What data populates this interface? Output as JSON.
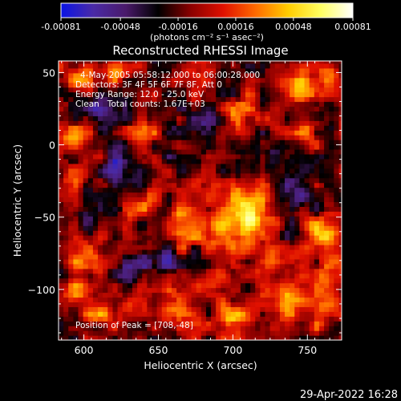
{
  "chart_data": {
    "type": "heatmap",
    "title": "Reconstructed RHESSI Image",
    "xlabel": "Heliocentric X (arcsec)",
    "ylabel": "Heliocentric Y (arcsec)",
    "xlim": [
      583,
      773
    ],
    "ylim": [
      -135,
      58
    ],
    "x_ticks": [
      600,
      650,
      700,
      750
    ],
    "y_ticks": [
      50,
      0,
      -50,
      -100
    ],
    "x_tick_labels": [
      "600",
      "650",
      "700",
      "750"
    ],
    "y_tick_labels": [
      "50",
      "0",
      "−50",
      "−100"
    ],
    "annotations": [
      "4-May-2005 05:58:12.000 to 06:00:28.000",
      "Detectors: 3F 4F 5F 6F 7F 8F, Att 0",
      "Energy Range: 12.0 - 25.0 keV",
      "Clean   Total counts: 1.67E+03",
      "Position of Peak = [708,-48]"
    ],
    "colorbar": {
      "range": [
        -0.00081,
        0.00081
      ],
      "ticks": [
        -0.00081,
        -0.00048,
        -0.00016,
        0.00016,
        0.00048,
        0.00081
      ],
      "tick_labels": [
        "-0.00081",
        "-0.00048",
        "-0.00016",
        "0.00016",
        "0.00048",
        "0.00081"
      ],
      "unit_label": "(photons cm⁻² s⁻¹ asec⁻²)",
      "colors": [
        "#0a14e6",
        "#4a2aa6",
        "#4a1a6a",
        "#000000",
        "#8a0000",
        "#e01000",
        "#ff6a00",
        "#ffcc00",
        "#ffff60",
        "#ffffff"
      ]
    },
    "peak": [
      708,
      -48
    ],
    "hotspots": [
      {
        "x": 710,
        "y": -45,
        "amp": 0.0008,
        "sx": 10,
        "sy": 11
      },
      {
        "x": 690,
        "y": -62,
        "amp": 0.0005,
        "sx": 9,
        "sy": 9
      },
      {
        "x": 758,
        "y": -62,
        "amp": 0.00045,
        "sx": 8,
        "sy": 10
      },
      {
        "x": 665,
        "y": -55,
        "amp": 0.00042,
        "sx": 7,
        "sy": 10
      },
      {
        "x": 640,
        "y": -38,
        "amp": 0.00035,
        "sx": 6,
        "sy": 7
      },
      {
        "x": 600,
        "y": -75,
        "amp": 0.00035,
        "sx": 8,
        "sy": 8
      },
      {
        "x": 595,
        "y": -100,
        "amp": 0.0004,
        "sx": 7,
        "sy": 7
      },
      {
        "x": 615,
        "y": -118,
        "amp": 0.0004,
        "sx": 8,
        "sy": 6
      },
      {
        "x": 660,
        "y": -110,
        "amp": 0.00045,
        "sx": 9,
        "sy": 7
      },
      {
        "x": 683,
        "y": -95,
        "amp": 0.0004,
        "sx": 8,
        "sy": 8
      },
      {
        "x": 700,
        "y": -120,
        "amp": 0.00045,
        "sx": 9,
        "sy": 8
      },
      {
        "x": 735,
        "y": -108,
        "amp": 0.0004,
        "sx": 8,
        "sy": 9
      },
      {
        "x": 763,
        "y": -115,
        "amp": 0.00038,
        "sx": 6,
        "sy": 8
      },
      {
        "x": 760,
        "y": -90,
        "amp": 0.00035,
        "sx": 6,
        "sy": 6
      },
      {
        "x": 600,
        "y": 45,
        "amp": 0.0004,
        "sx": 8,
        "sy": 8
      },
      {
        "x": 595,
        "y": 8,
        "amp": 0.00035,
        "sx": 7,
        "sy": 7
      },
      {
        "x": 620,
        "y": 50,
        "amp": 0.00035,
        "sx": 6,
        "sy": 5
      },
      {
        "x": 745,
        "y": 40,
        "amp": 0.00042,
        "sx": 8,
        "sy": 8
      },
      {
        "x": 765,
        "y": 48,
        "amp": 0.00035,
        "sx": 6,
        "sy": 6
      },
      {
        "x": 752,
        "y": 10,
        "amp": 0.0003,
        "sx": 7,
        "sy": 7
      },
      {
        "x": 705,
        "y": 22,
        "amp": 0.0003,
        "sx": 9,
        "sy": 6
      },
      {
        "x": 640,
        "y": 8,
        "amp": 0.00028,
        "sx": 7,
        "sy": 7
      },
      {
        "x": 595,
        "y": -18,
        "amp": 0.00025,
        "sx": 5,
        "sy": 6
      },
      {
        "x": 722,
        "y": -80,
        "amp": 0.0003,
        "sx": 5,
        "sy": 6
      },
      {
        "x": 690,
        "y": -28,
        "amp": 0.00025,
        "sx": 5,
        "sy": 5
      },
      {
        "x": 678,
        "y": 12,
        "amp": -0.0002,
        "sx": 10,
        "sy": 12
      },
      {
        "x": 625,
        "y": -15,
        "amp": -0.0004,
        "sx": 9,
        "sy": 9
      },
      {
        "x": 650,
        "y": -80,
        "amp": -0.0004,
        "sx": 10,
        "sy": 8
      },
      {
        "x": 715,
        "y": -5,
        "amp": -0.00035,
        "sx": 9,
        "sy": 10
      },
      {
        "x": 740,
        "y": -35,
        "amp": -0.00035,
        "sx": 7,
        "sy": 8
      },
      {
        "x": 610,
        "y": 25,
        "amp": -0.00035,
        "sx": 7,
        "sy": 7
      },
      {
        "x": 625,
        "y": -90,
        "amp": -0.00035,
        "sx": 7,
        "sy": 6
      },
      {
        "x": 600,
        "y": -50,
        "amp": -0.00025,
        "sx": 6,
        "sy": 6
      }
    ]
  },
  "timestamp": "29-Apr-2022 16:28"
}
